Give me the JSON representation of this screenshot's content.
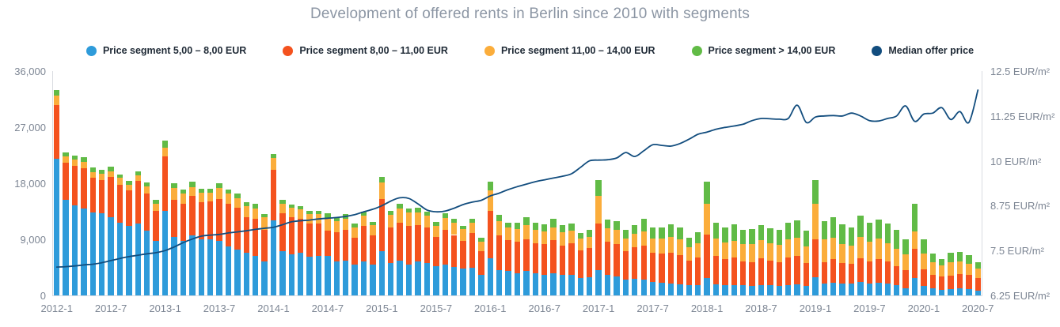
{
  "chart": {
    "title": "Development of offered rents in Berlin since 2010 with segments"
  },
  "chart_data": {
    "type": "bar",
    "subtype": "stacked-bar-with-line",
    "title": "Development of offered rents in Berlin since 2010 with segments",
    "stacked": true,
    "grid": false,
    "legend_position": "top",
    "x": [
      "2012-1",
      "2012-2",
      "2012-3",
      "2012-4",
      "2012-5",
      "2012-6",
      "2012-7",
      "2012-8",
      "2012-9",
      "2012-10",
      "2012-11",
      "2012-12",
      "2013-1",
      "2013-2",
      "2013-3",
      "2013-4",
      "2013-5",
      "2013-6",
      "2013-7",
      "2013-8",
      "2013-9",
      "2013-10",
      "2013-11",
      "2013-12",
      "2014-1",
      "2014-2",
      "2014-3",
      "2014-4",
      "2014-5",
      "2014-6",
      "2014-7",
      "2014-8",
      "2014-9",
      "2014-10",
      "2014-11",
      "2014-12",
      "2015-1",
      "2015-2",
      "2015-3",
      "2015-4",
      "2015-5",
      "2015-6",
      "2015-7",
      "2015-8",
      "2015-9",
      "2015-10",
      "2015-11",
      "2015-12",
      "2016-1",
      "2016-2",
      "2016-3",
      "2016-4",
      "2016-5",
      "2016-6",
      "2016-7",
      "2016-8",
      "2016-9",
      "2016-10",
      "2016-11",
      "2016-12",
      "2017-1",
      "2017-2",
      "2017-3",
      "2017-4",
      "2017-5",
      "2017-6",
      "2017-7",
      "2017-8",
      "2017-9",
      "2017-10",
      "2017-11",
      "2017-12",
      "2018-1",
      "2018-2",
      "2018-3",
      "2018-4",
      "2018-5",
      "2018-6",
      "2018-7",
      "2018-8",
      "2018-9",
      "2018-10",
      "2018-11",
      "2018-12",
      "2019-1",
      "2019-2",
      "2019-3",
      "2019-4",
      "2019-5",
      "2019-6",
      "2019-7",
      "2019-8",
      "2019-9",
      "2019-10",
      "2019-11",
      "2019-12",
      "2020-1",
      "2020-2",
      "2020-3",
      "2020-4",
      "2020-5",
      "2020-6",
      "2020-7"
    ],
    "x_tick_labels": [
      "2012-1",
      "2012-7",
      "2013-1",
      "2013-7",
      "2014-1",
      "2014-7",
      "2015-1",
      "2015-7",
      "2016-1",
      "2016-7",
      "2017-1",
      "2017-7",
      "2018-1",
      "2018-7",
      "2019-1",
      "2019-7",
      "2020-1",
      "2020-7"
    ],
    "left_axis": {
      "ticks": [
        "0",
        "9,000",
        "18,000",
        "27,000",
        "36,000"
      ],
      "values": [
        0,
        9000,
        18000,
        27000,
        36000
      ],
      "min": 0,
      "max": 36000
    },
    "right_axis": {
      "ticks": [
        "6.25 EUR/m²",
        "7.5 EUR/m²",
        "8.75 EUR/m²",
        "10 EUR/m²",
        "11.25 EUR/m²",
        "12.5 EUR/m²"
      ],
      "values": [
        6.25,
        7.5,
        8.75,
        10,
        11.25,
        12.5
      ],
      "min": 6.25,
      "max": 12.5,
      "unit": "EUR/m²"
    },
    "series": [
      {
        "name": "Price segment 5,00 – 8,00 EUR",
        "type": "bar",
        "color": "#2e9bda",
        "values": [
          21900,
          15400,
          14500,
          14000,
          13300,
          13200,
          12600,
          11700,
          11100,
          11500,
          10400,
          8700,
          13600,
          9400,
          8800,
          9600,
          9000,
          9000,
          8800,
          7900,
          7400,
          6900,
          6400,
          5400,
          12100,
          7100,
          6600,
          6900,
          6200,
          6300,
          6300,
          5400,
          5600,
          5000,
          5500,
          4900,
          7100,
          5200,
          5600,
          5000,
          5400,
          5200,
          4700,
          4900,
          4600,
          4300,
          4400,
          3300,
          6000,
          4100,
          3900,
          3600,
          3900,
          3600,
          3300,
          3500,
          3300,
          3300,
          2800,
          2900,
          4100,
          3300,
          3000,
          2600,
          2700,
          2500,
          2100,
          2000,
          1900,
          1800,
          1600,
          1700,
          2800,
          1800,
          1700,
          1700,
          1600,
          1550,
          1700,
          1600,
          1550,
          1700,
          1800,
          1550,
          2900,
          1900,
          2000,
          1900,
          1850,
          2100,
          1950,
          2000,
          1900,
          1600,
          1200,
          2800,
          1500,
          1100,
          900,
          1000,
          1100,
          1000,
          800
        ]
      },
      {
        "name": "Price segment 8,00 – 11,00 EUR",
        "type": "bar",
        "color": "#f4521e",
        "values": [
          8600,
          5900,
          6300,
          6450,
          5600,
          5250,
          6400,
          6000,
          5750,
          6900,
          6000,
          4900,
          8650,
          5900,
          5900,
          6350,
          5900,
          6100,
          6700,
          6750,
          6650,
          5700,
          5900,
          5100,
          8050,
          6100,
          5900,
          5450,
          5400,
          5300,
          4150,
          4700,
          4900,
          4200,
          5600,
          4700,
          8350,
          5650,
          6100,
          6200,
          5900,
          5650,
          4700,
          5600,
          5100,
          4450,
          5600,
          3800,
          7600,
          5550,
          4950,
          5050,
          5050,
          4800,
          4950,
          5350,
          4700,
          5050,
          4450,
          4650,
          7400,
          5350,
          5250,
          4450,
          5000,
          5500,
          4800,
          4700,
          4900,
          4700,
          4000,
          4400,
          7000,
          4500,
          4100,
          4400,
          3850,
          3800,
          4300,
          4000,
          3800,
          4400,
          4500,
          3600,
          6050,
          3450,
          3800,
          3250,
          3200,
          3900,
          3500,
          3800,
          3500,
          3150,
          2800,
          4700,
          2700,
          2250,
          2150,
          2200,
          2350,
          2250,
          2050
        ]
      },
      {
        "name": "Price segment 11,00 – 14,00 EUR",
        "type": "bar",
        "color": "#fbad3b",
        "values": [
          1600,
          1000,
          950,
          950,
          900,
          1050,
          950,
          1150,
          950,
          850,
          1150,
          1150,
          1500,
          1900,
          1700,
          1450,
          1550,
          1400,
          1800,
          1700,
          1600,
          1700,
          1600,
          2000,
          1900,
          1550,
          1550,
          1500,
          1450,
          1500,
          2000,
          1800,
          1850,
          1750,
          1700,
          1700,
          2700,
          2050,
          2200,
          2050,
          2050,
          1900,
          1800,
          1950,
          1950,
          1900,
          1700,
          1500,
          3250,
          2250,
          2000,
          2000,
          2300,
          2100,
          2000,
          2100,
          2100,
          2000,
          1850,
          1800,
          4450,
          2100,
          2300,
          2100,
          2200,
          2250,
          2250,
          2400,
          2600,
          2500,
          2100,
          2300,
          4850,
          2800,
          2750,
          2700,
          2800,
          2850,
          2850,
          2800,
          2750,
          2850,
          2900,
          2650,
          5800,
          3600,
          3400,
          3100,
          2950,
          3400,
          3200,
          3300,
          3000,
          2750,
          2550,
          2750,
          2500,
          2000,
          1800,
          2100,
          2000,
          1800,
          1500
        ]
      },
      {
        "name": "Price segment > 14,00 EUR",
        "type": "bar",
        "color": "#61bb46",
        "values": [
          850,
          700,
          750,
          750,
          800,
          650,
          700,
          550,
          550,
          600,
          600,
          550,
          1150,
          850,
          650,
          850,
          700,
          600,
          750,
          650,
          700,
          600,
          750,
          600,
          650,
          550,
          500,
          500,
          500,
          500,
          700,
          650,
          700,
          550,
          650,
          500,
          850,
          700,
          750,
          750,
          700,
          700,
          600,
          700,
          600,
          550,
          650,
          700,
          1400,
          1050,
          850,
          1000,
          1350,
          1200,
          1150,
          1400,
          1200,
          1150,
          900,
          1150,
          2600,
          1450,
          1400,
          1350,
          1350,
          2000,
          1700,
          1800,
          1950,
          1900,
          1550,
          1800,
          3600,
          2600,
          2400,
          2650,
          2300,
          2450,
          2450,
          2350,
          2400,
          2750,
          2850,
          2550,
          3800,
          2950,
          3350,
          3150,
          2950,
          3350,
          3050,
          3100,
          3200,
          3050,
          2400,
          4500,
          2250,
          1350,
          1000,
          1550,
          1500,
          1400,
          950
        ]
      },
      {
        "name": "Median offer price",
        "type": "line",
        "axis": "right",
        "color": "#124d7e",
        "values": [
          7.04,
          7.05,
          7.07,
          7.1,
          7.12,
          7.16,
          7.22,
          7.28,
          7.33,
          7.37,
          7.41,
          7.44,
          7.5,
          7.6,
          7.72,
          7.82,
          7.9,
          7.93,
          7.95,
          7.99,
          8.02,
          8.05,
          8.09,
          8.12,
          8.15,
          8.22,
          8.3,
          8.33,
          8.35,
          8.38,
          8.4,
          8.42,
          8.45,
          8.5,
          8.58,
          8.65,
          8.75,
          8.88,
          8.97,
          8.95,
          8.8,
          8.63,
          8.58,
          8.6,
          8.68,
          8.78,
          8.85,
          8.9,
          9.02,
          9.1,
          9.2,
          9.28,
          9.35,
          9.42,
          9.47,
          9.52,
          9.57,
          9.64,
          9.82,
          10.0,
          10.02,
          10.03,
          10.08,
          10.23,
          10.12,
          10.28,
          10.45,
          10.43,
          10.41,
          10.48,
          10.6,
          10.74,
          10.8,
          10.88,
          10.93,
          10.97,
          11.02,
          11.12,
          11.18,
          11.17,
          11.16,
          11.18,
          11.55,
          11.07,
          11.22,
          11.25,
          11.26,
          11.25,
          11.33,
          11.25,
          11.12,
          11.11,
          11.18,
          11.25,
          11.53,
          11.1,
          11.3,
          11.33,
          11.48,
          11.15,
          11.37,
          11.07,
          11.97
        ]
      }
    ]
  }
}
